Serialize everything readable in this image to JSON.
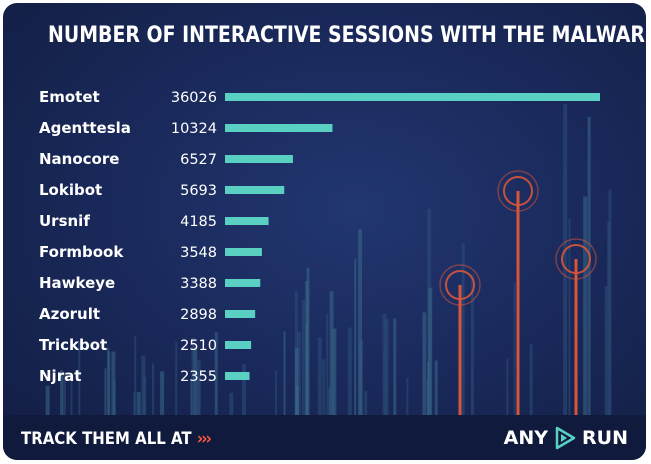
{
  "title": "NUMBER OF INTERACTIVE SESSIONS WITH THE MALWARE FAMILY",
  "chart_data": {
    "type": "bar",
    "orientation": "horizontal",
    "title": "NUMBER OF INTERACTIVE SESSIONS WITH THE MALWARE FAMILY",
    "categories": [
      "Emotet",
      "Agenttesla",
      "Nanocore",
      "Lokibot",
      "Ursnif",
      "Formbook",
      "Hawkeye",
      "Azorult",
      "Trickbot",
      "Njrat"
    ],
    "values": [
      36026,
      10324,
      6527,
      5693,
      4185,
      3548,
      3388,
      2898,
      2510,
      2355
    ],
    "xlabel": "",
    "ylabel": "",
    "grid": false,
    "bar_color": "#5ad0c2"
  },
  "footer": {
    "cta": "TRACK THEM ALL AT",
    "cta_arrows": "›››",
    "brand_left": "ANY",
    "brand_right": "RUN",
    "brand_logo_icon": "play-triangle-icon"
  },
  "colors": {
    "background": "#1a2a5c",
    "footer": "#101a3c",
    "bar": "#5ad0c2",
    "accent": "#ff5a3c"
  }
}
